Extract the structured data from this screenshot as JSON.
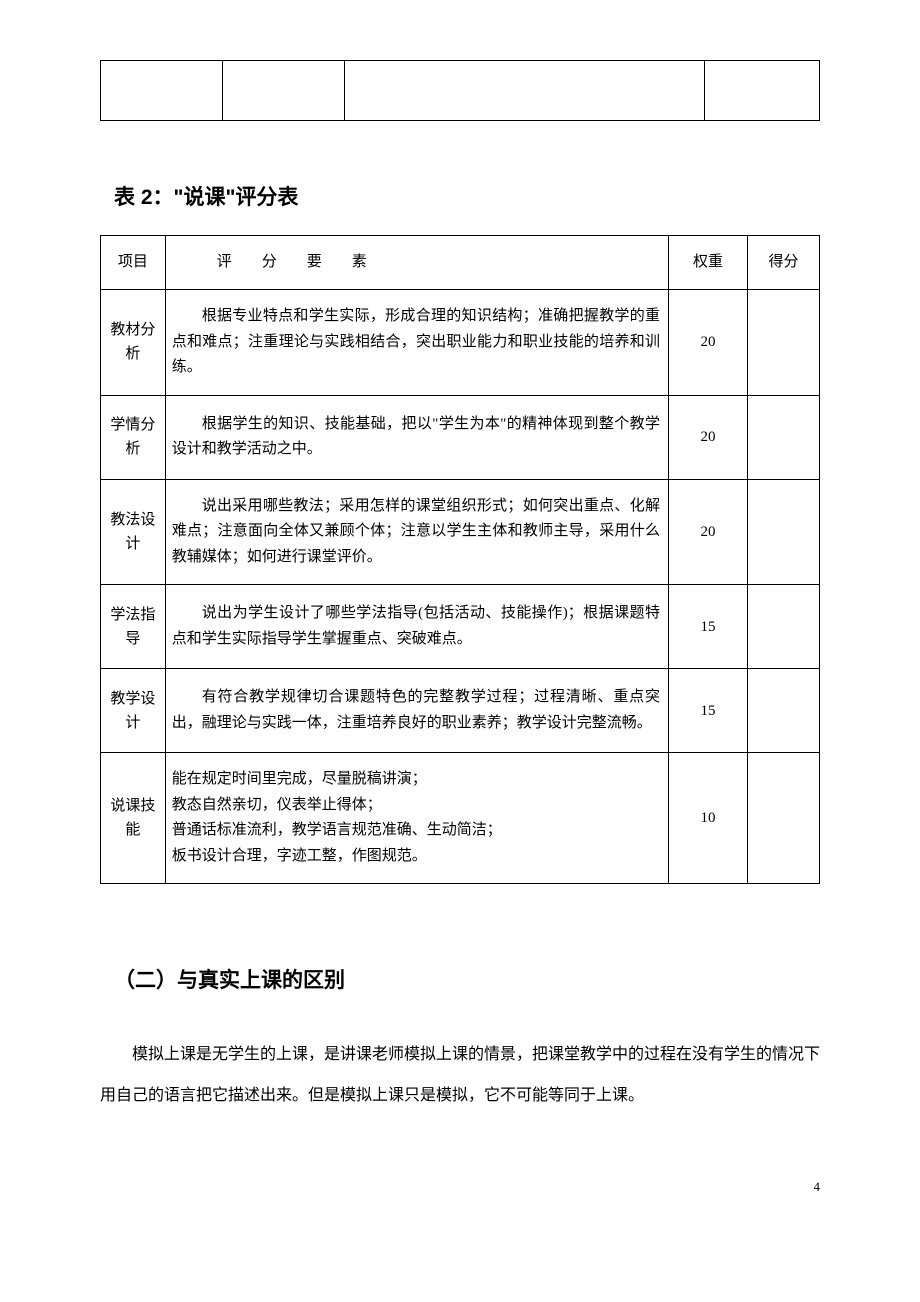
{
  "table2": {
    "caption_prefix": "表 2：",
    "caption_quoted": "\"说课\"",
    "caption_suffix": "评分表",
    "headers": {
      "item": "项目",
      "eval": "评分要素",
      "weight": "权重",
      "score": "得分"
    },
    "rows": [
      {
        "item": "教材分析",
        "desc": "根据专业特点和学生实际，形成合理的知识结构；准确把握教学的重点和难点；注重理论与实践相结合，突出职业能力和职业技能的培养和训练。",
        "weight": "20",
        "score": ""
      },
      {
        "item": "学情分析",
        "desc": "根据学生的知识、技能基础，把以\"学生为本\"的精神体现到整个教学设计和教学活动之中。",
        "weight": "20",
        "score": ""
      },
      {
        "item": "教法设计",
        "desc": "说出采用哪些教法；采用怎样的课堂组织形式；如何突出重点、化解难点；注意面向全体又兼顾个体；注意以学生主体和教师主导，采用什么教辅媒体；如何进行课堂评价。",
        "weight": "20",
        "score": ""
      },
      {
        "item": "学法指导",
        "desc": "说出为学生设计了哪些学法指导(包括活动、技能操作)；根据课题特点和学生实际指导学生掌握重点、突破难点。",
        "weight": "15",
        "score": ""
      },
      {
        "item": "教学设计",
        "desc": "有符合教学规律切合课题特色的完整教学过程；过程清晰、重点突出，融理论与实践一体，注重培养良好的职业素养；教学设计完整流畅。",
        "weight": "15",
        "score": ""
      },
      {
        "item": "说课技能",
        "desc_lines": [
          "能在规定时间里完成，尽量脱稿讲演；",
          "教态自然亲切，仪表举止得体；",
          "普通话标准流利，教学语言规范准确、生动简洁；",
          "板书设计合理，字迹工整，作图规范。"
        ],
        "weight": "10",
        "score": ""
      }
    ]
  },
  "subsection": {
    "title": "（二）与真实上课的区别",
    "paragraph": "模拟上课是无学生的上课，是讲课老师模拟上课的情景，把课堂教学中的过程在没有学生的情况下用自己的语言把它描述出来。但是模拟上课只是模拟，它不可能等同于上课。"
  },
  "page_number": "4",
  "styles": {
    "body_font": "SimSun",
    "heading_font": "SimHei",
    "text_color": "#000000",
    "background_color": "#ffffff",
    "border_color": "#000000"
  }
}
